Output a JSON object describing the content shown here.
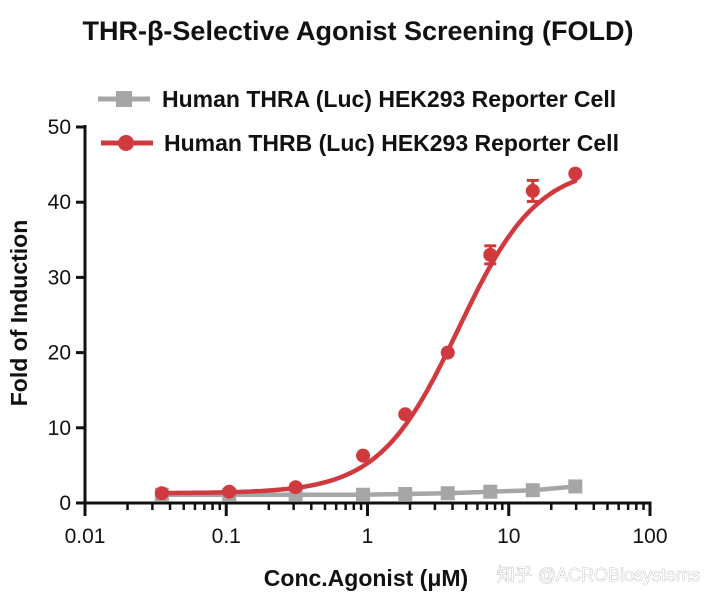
{
  "chart_data": {
    "type": "line",
    "title": "THR-β-Selective Agonist Screening (FOLD)",
    "xlabel": "Conc.Agonist (μM)",
    "ylabel": "Fold of Induction",
    "xscale": "log",
    "xlim": [
      0.01,
      100
    ],
    "ylim": [
      0,
      50
    ],
    "xticks": [
      0.01,
      0.1,
      1,
      10,
      100
    ],
    "xtick_labels": [
      "0.01",
      "0.1",
      "1",
      "10",
      "100"
    ],
    "yticks": [
      0,
      10,
      20,
      30,
      40,
      50
    ],
    "ytick_labels": [
      "0",
      "10",
      "20",
      "30",
      "40",
      "50"
    ],
    "legend_position": "top",
    "series": [
      {
        "name": "Human THRA (Luc) HEK293 Reporter Cell",
        "color": "#a6a6a6",
        "marker": "square",
        "x": [
          0.035,
          0.105,
          0.31,
          0.93,
          1.85,
          3.7,
          7.4,
          14.8,
          29.6
        ],
        "y": [
          1.1,
          1.1,
          1.1,
          1.1,
          1.2,
          1.3,
          1.5,
          1.7,
          2.2
        ]
      },
      {
        "name": "Human THRB (Luc) HEK293 Reporter Cell",
        "color": "#d0393e",
        "marker": "circle",
        "x": [
          0.035,
          0.105,
          0.31,
          0.93,
          1.85,
          3.7,
          7.4,
          14.8,
          29.6
        ],
        "y": [
          1.3,
          1.5,
          2.1,
          6.3,
          11.8,
          20.0,
          33.0,
          41.5,
          43.8
        ],
        "error_y": [
          0.3,
          0.3,
          0.4,
          0.4,
          0.5,
          0.6,
          1.2,
          1.4,
          0.5
        ]
      }
    ],
    "watermark": "知乎 @ACROBiosystems"
  }
}
